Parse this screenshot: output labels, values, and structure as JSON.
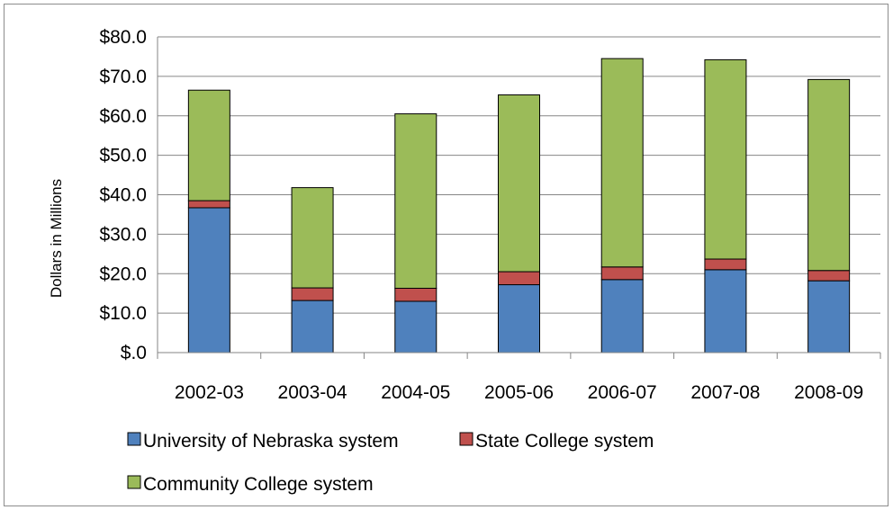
{
  "chart_data": {
    "type": "bar",
    "stacked": true,
    "title": "",
    "xlabel": "",
    "ylabel": "Dollars in Millions",
    "ylim": [
      0,
      80
    ],
    "yticks": [
      "$.0",
      "$10.0",
      "$20.0",
      "$30.0",
      "$40.0",
      "$50.0",
      "$60.0",
      "$70.0",
      "$80.0"
    ],
    "grid": true,
    "legend_position": "bottom",
    "categories": [
      "2002-03",
      "2003-04",
      "2004-05",
      "2005-06",
      "2006-07",
      "2007-08",
      "2008-09"
    ],
    "series": [
      {
        "name": "University of Nebraska system",
        "color": "#4f81bd",
        "values": [
          36.7,
          13.2,
          13.0,
          17.2,
          18.5,
          21.0,
          18.2
        ]
      },
      {
        "name": "State College system",
        "color": "#c0504d",
        "values": [
          1.8,
          3.2,
          3.3,
          3.3,
          3.2,
          2.7,
          2.6
        ]
      },
      {
        "name": "Community College system",
        "color": "#9bbb59",
        "values": [
          28.0,
          25.4,
          44.2,
          44.8,
          52.8,
          50.5,
          48.4
        ]
      }
    ]
  }
}
